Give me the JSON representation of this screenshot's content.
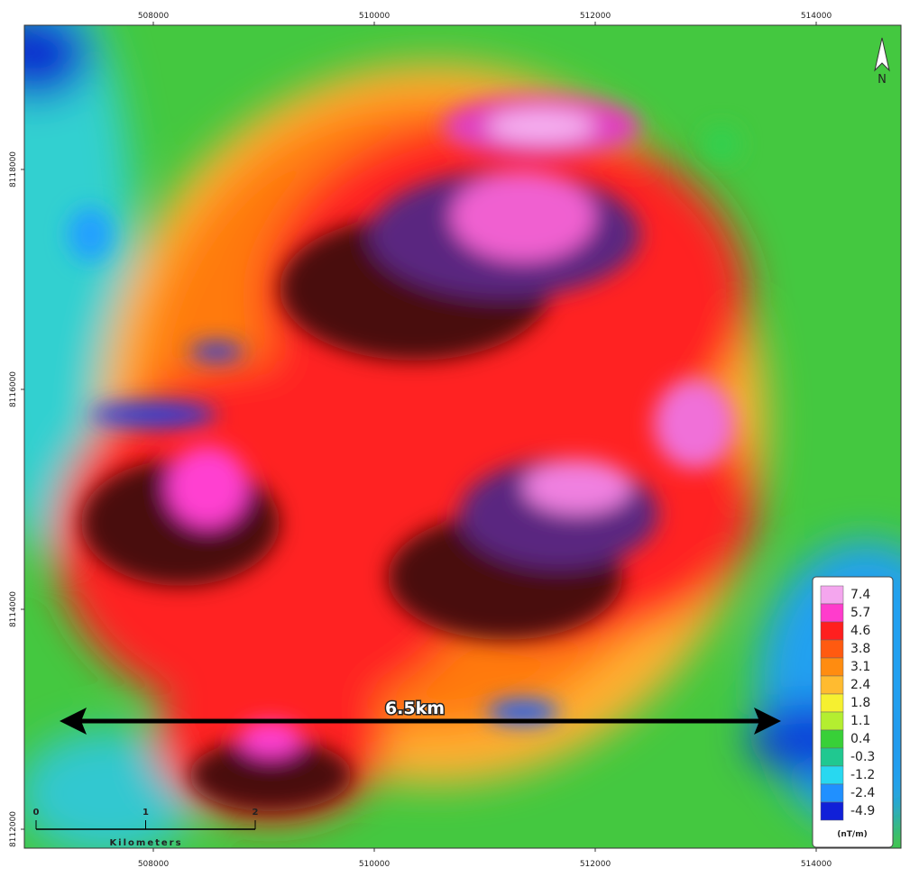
{
  "map": {
    "x_ticks": [
      508000,
      510000,
      512000,
      514000
    ],
    "y_ticks": [
      8118000,
      8116000,
      8114000,
      8112000
    ],
    "legend": {
      "values": [
        7.4,
        5.7,
        4.6,
        3.8,
        3.1,
        2.4,
        1.8,
        1.1,
        0.4,
        -0.3,
        -1.2,
        -2.4,
        -4.9
      ],
      "colors": [
        "#f4a6ee",
        "#ff3ccc",
        "#ff1f1f",
        "#ff5a10",
        "#ff8c10",
        "#ffbb30",
        "#f6f030",
        "#b4ee30",
        "#38d038",
        "#20c890",
        "#28d8f0",
        "#2090ff",
        "#1020d8"
      ],
      "unit": "(nT/m)"
    },
    "distance_label": "6.5km",
    "scale_bar": {
      "ticks": [
        0,
        1,
        2
      ],
      "unit": "Kilometers"
    },
    "north": "N"
  }
}
